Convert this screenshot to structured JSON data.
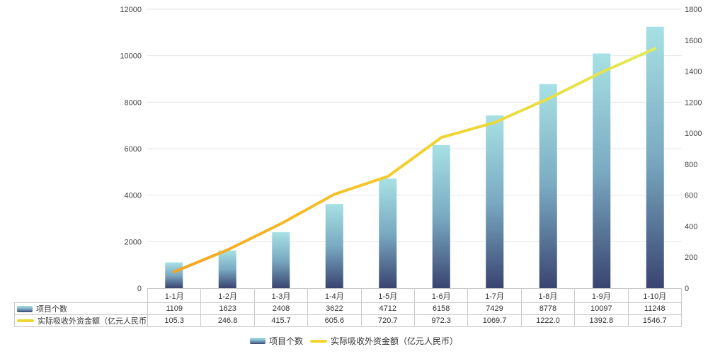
{
  "chart_data": {
    "type": "combo-bar-line",
    "title": "",
    "categories": [
      "1-1月",
      "1-2月",
      "1-3月",
      "1-4月",
      "1-5月",
      "1-6月",
      "1-7月",
      "1-8月",
      "1-9月",
      "1-10月"
    ],
    "series": [
      {
        "name": "项目个数",
        "type": "bar",
        "y_axis": "left",
        "values": [
          1109,
          1623,
          2408,
          3622,
          4712,
          6158,
          7429,
          8778,
          10097,
          11248
        ],
        "labels": [
          "1109",
          "1623",
          "2408",
          "3622",
          "4712",
          "6158",
          "7429",
          "8778",
          "10097",
          "11248"
        ],
        "gradient": [
          "#a7e1e4",
          "#7aaac2",
          "#394470"
        ]
      },
      {
        "name": "实际吸收外资金额（亿元人民币）",
        "type": "line",
        "y_axis": "right",
        "values": [
          105.3,
          246.8,
          415.7,
          605.6,
          720.7,
          972.3,
          1069.7,
          1222.0,
          1392.8,
          1546.7
        ],
        "labels": [
          "105.3",
          "246.8",
          "415.7",
          "605.6",
          "720.7",
          "972.3",
          "1069.7",
          "1222.0",
          "1392.8",
          "1546.7"
        ],
        "gradient": [
          "#f6a41f",
          "#f2d02c",
          "#e2ea56"
        ],
        "legend_swatch_color": "#f2d533"
      }
    ],
    "left_axis": {
      "min": 0,
      "max": 12000,
      "ticks": [
        "0",
        "2000",
        "4000",
        "6000",
        "8000",
        "10000",
        "12000"
      ]
    },
    "right_axis": {
      "min": 0,
      "max": 1800,
      "ticks": [
        "0",
        "200",
        "400",
        "600",
        "800",
        "1000",
        "1200",
        "1400",
        "1600",
        "1800"
      ]
    },
    "grid_lines": "horizontal",
    "legend_position": "bottom",
    "colors": {
      "grid_line": "#e6e6e6",
      "table_border": "#c9c9c9",
      "axis_text": "#444444",
      "table_text": "#333333",
      "background": "#ffffff"
    }
  },
  "legend": {
    "items": [
      {
        "label": "项目个数",
        "swatch": "bar"
      },
      {
        "label": "实际吸收外资金额（亿元人民币）",
        "swatch": "line"
      }
    ]
  }
}
